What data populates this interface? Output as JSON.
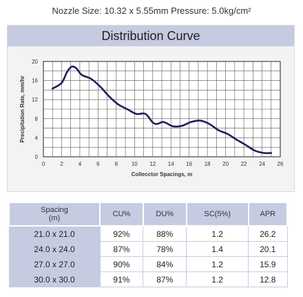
{
  "header": {
    "text": "Nozzle Size: 10.32 x 5.55mm    Pressure: 5.0kg/cm²"
  },
  "chart_data": {
    "type": "line",
    "title": "Distribution Curve",
    "xlabel": "Collecctor Spacings, m",
    "ylabel": "Precipitation Rate, mm/hr",
    "xlim": [
      0,
      26
    ],
    "ylim": [
      0,
      20
    ],
    "x_ticks": [
      0,
      2,
      4,
      6,
      8,
      10,
      12,
      14,
      16,
      18,
      20,
      22,
      24,
      26
    ],
    "y_ticks": [
      0,
      4,
      8,
      12,
      16,
      20
    ],
    "grid": true,
    "series_color": "#1e1e5a",
    "series": [
      {
        "x": [
          1.0,
          2.0,
          2.6,
          3.1,
          3.6,
          4.2,
          5.2,
          6.2,
          7.2,
          8.2,
          9.2,
          10.2,
          11.2,
          12.0,
          12.5,
          13.2,
          14.2,
          15.2,
          16.2,
          17.2,
          18.2,
          19.2,
          20.2,
          21.2,
          22.2,
          23.2,
          24.2,
          25.0
        ],
        "y": [
          14.3,
          15.5,
          17.8,
          18.9,
          18.6,
          17.2,
          16.4,
          14.8,
          12.7,
          11.0,
          10.0,
          9.0,
          9.0,
          7.2,
          6.9,
          7.3,
          6.4,
          6.5,
          7.3,
          7.6,
          6.9,
          5.6,
          4.8,
          3.6,
          2.5,
          1.3,
          0.8,
          0.8
        ]
      }
    ]
  },
  "table": {
    "headers": [
      "Spacing\n(m)",
      "CU%",
      "DU%",
      "SC(5%)",
      "APR"
    ],
    "rows": [
      [
        "21.0 x 21.0",
        "92%",
        "88%",
        "1.2",
        "26.2"
      ],
      [
        "24.0 x 24.0",
        "87%",
        "78%",
        "1.4",
        "20.1"
      ],
      [
        "27.0 x 27.0",
        "90%",
        "84%",
        "1.2",
        "15.9"
      ],
      [
        "30.0 x 30.0",
        "91%",
        "87%",
        "1.2",
        "12.8"
      ]
    ]
  }
}
